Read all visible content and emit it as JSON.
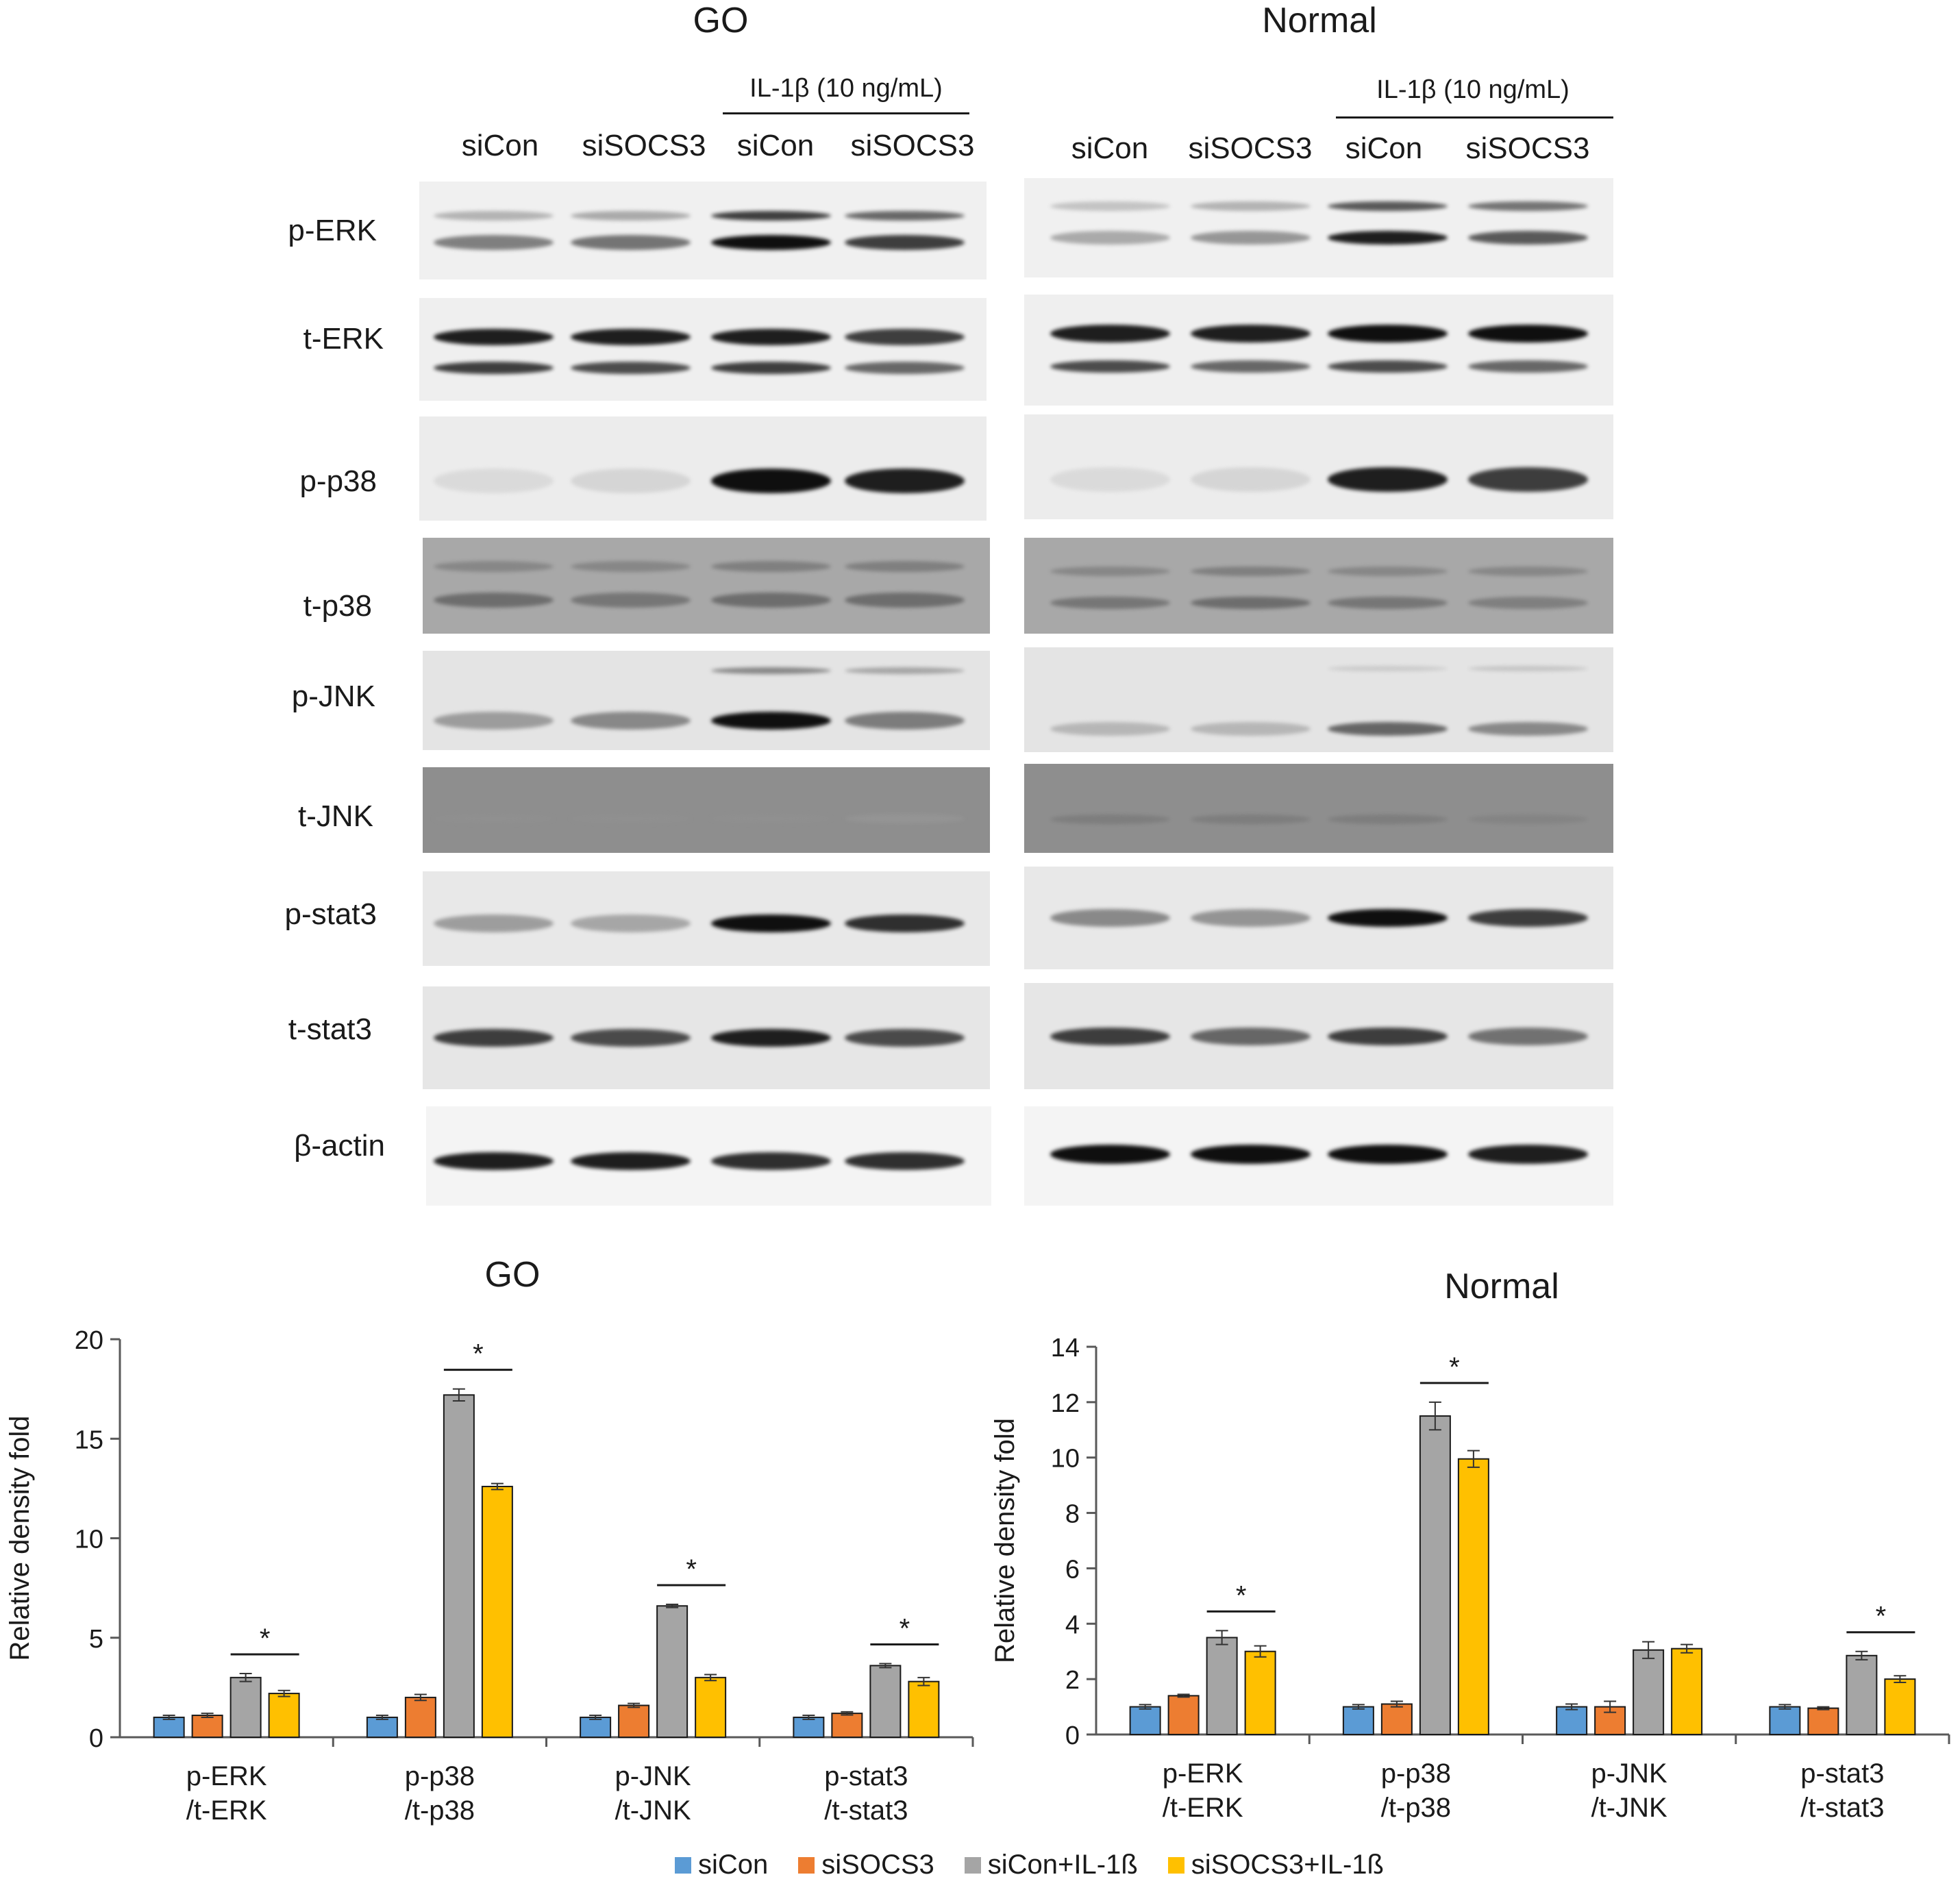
{
  "blots": {
    "panels": [
      {
        "title": "GO",
        "treatment": "IL-1β (10 ng/mL)",
        "lanes": [
          "siCon",
          "siSOCS3",
          "siCon",
          "siSOCS3"
        ]
      },
      {
        "title": "Normal",
        "treatment": "IL-1β (10 ng/mL)",
        "lanes": [
          "siCon",
          "siSOCS3",
          "siCon",
          "siSOCS3"
        ]
      }
    ],
    "rows": [
      "p-ERK",
      "t-ERK",
      "p-p38",
      "t-p38",
      "p-JNK",
      "t-JNK",
      "p-stat3",
      "t-stat3",
      "β-actin"
    ]
  },
  "legend": [
    "siCon",
    "siSOCS3",
    "siCon+IL-1ß",
    "siSOCS3+IL-1ß"
  ],
  "colors": {
    "siCon": "#5b9bd5",
    "siSOCS3": "#ed7d31",
    "siCon+IL-1ß": "#a5a5a5",
    "siSOCS3+IL-1ß": "#ffc000"
  },
  "chart_data": [
    {
      "type": "bar",
      "title": "GO",
      "ylabel": "Relative density fold",
      "ylim": [
        0,
        20
      ],
      "yticks": [
        "0",
        "5",
        "10",
        "15",
        "20"
      ],
      "categories": [
        [
          "p-ERK",
          "/t-ERK"
        ],
        [
          "p-p38",
          "/t-p38"
        ],
        [
          "p-JNK",
          "/t-JNK"
        ],
        [
          "p-stat3",
          "/t-stat3"
        ]
      ],
      "series": [
        {
          "name": "siCon",
          "values": [
            1.0,
            1.0,
            1.0,
            1.0
          ],
          "errors": [
            0.1,
            0.1,
            0.1,
            0.1
          ]
        },
        {
          "name": "siSOCS3",
          "values": [
            1.1,
            2.0,
            1.6,
            1.2
          ],
          "errors": [
            0.1,
            0.15,
            0.1,
            0.08
          ]
        },
        {
          "name": "siCon+IL-1ß",
          "values": [
            3.0,
            17.2,
            6.6,
            3.6
          ],
          "errors": [
            0.2,
            0.3,
            0.08,
            0.1
          ]
        },
        {
          "name": "siSOCS3+IL-1ß",
          "values": [
            2.2,
            12.6,
            3.0,
            2.8
          ],
          "errors": [
            0.15,
            0.15,
            0.15,
            0.2
          ]
        }
      ],
      "significance": [
        "*",
        "*",
        "*",
        "*"
      ],
      "legend_position": "bottom"
    },
    {
      "type": "bar",
      "title": "Normal",
      "ylabel": "Relative density fold",
      "ylim": [
        0,
        14
      ],
      "yticks": [
        "0",
        "2",
        "4",
        "6",
        "8",
        "10",
        "12",
        "14"
      ],
      "categories": [
        [
          "p-ERK",
          "/t-ERK"
        ],
        [
          "p-p38",
          "/t-p38"
        ],
        [
          "p-JNK",
          "/t-JNK"
        ],
        [
          "p-stat3",
          "/t-stat3"
        ]
      ],
      "series": [
        {
          "name": "siCon",
          "values": [
            1.0,
            1.0,
            1.0,
            1.0
          ],
          "errors": [
            0.08,
            0.08,
            0.1,
            0.08
          ]
        },
        {
          "name": "siSOCS3",
          "values": [
            1.4,
            1.1,
            1.0,
            0.95
          ],
          "errors": [
            0.05,
            0.1,
            0.2,
            0.05
          ]
        },
        {
          "name": "siCon+IL-1ß",
          "values": [
            3.5,
            11.5,
            3.05,
            2.85
          ],
          "errors": [
            0.25,
            0.5,
            0.3,
            0.15
          ]
        },
        {
          "name": "siSOCS3+IL-1ß",
          "values": [
            3.0,
            9.95,
            3.1,
            2.0
          ],
          "errors": [
            0.2,
            0.3,
            0.15,
            0.12
          ]
        }
      ],
      "significance": [
        "*",
        "*",
        "",
        "*"
      ],
      "legend_position": "bottom"
    }
  ]
}
